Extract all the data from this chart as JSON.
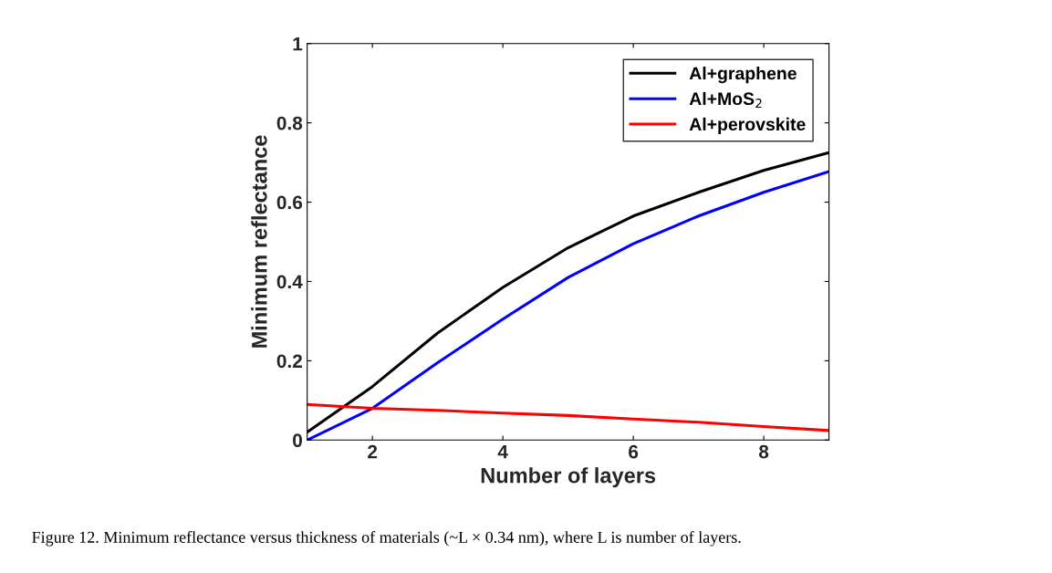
{
  "chart_data": {
    "type": "line",
    "xlabel": "Number of layers",
    "ylabel": "Minimum reflectance",
    "x": [
      1,
      2,
      3,
      4,
      5,
      6,
      7,
      8,
      9
    ],
    "series": [
      {
        "name": "Al+graphene",
        "color": "#000000",
        "values": [
          0.02,
          0.135,
          0.27,
          0.385,
          0.485,
          0.565,
          0.625,
          0.68,
          0.725
        ]
      },
      {
        "name": "Al+MoS$_{2}$",
        "color": "#0000ff",
        "values": [
          0.0,
          0.08,
          0.195,
          0.305,
          0.41,
          0.495,
          0.565,
          0.625,
          0.677
        ]
      },
      {
        "name": "Al+perovskite",
        "color": "#ff0000",
        "values": [
          0.09,
          0.08,
          0.075,
          0.068,
          0.062,
          0.053,
          0.045,
          0.034,
          0.024
        ]
      }
    ],
    "xlim": [
      1,
      9
    ],
    "xticks": [
      2,
      4,
      6,
      8
    ],
    "ylim": [
      0,
      1
    ],
    "yticks": [
      0,
      0.2,
      0.4,
      0.6,
      0.8,
      1
    ],
    "grid": false,
    "legend": "top right",
    "marker": "none",
    "line_style": "solid",
    "annotations": [
      "Figure 12. Minimum reflectance versus thickness of materials (~L × 0.34 nm), where L is number of layers."
    ]
  }
}
